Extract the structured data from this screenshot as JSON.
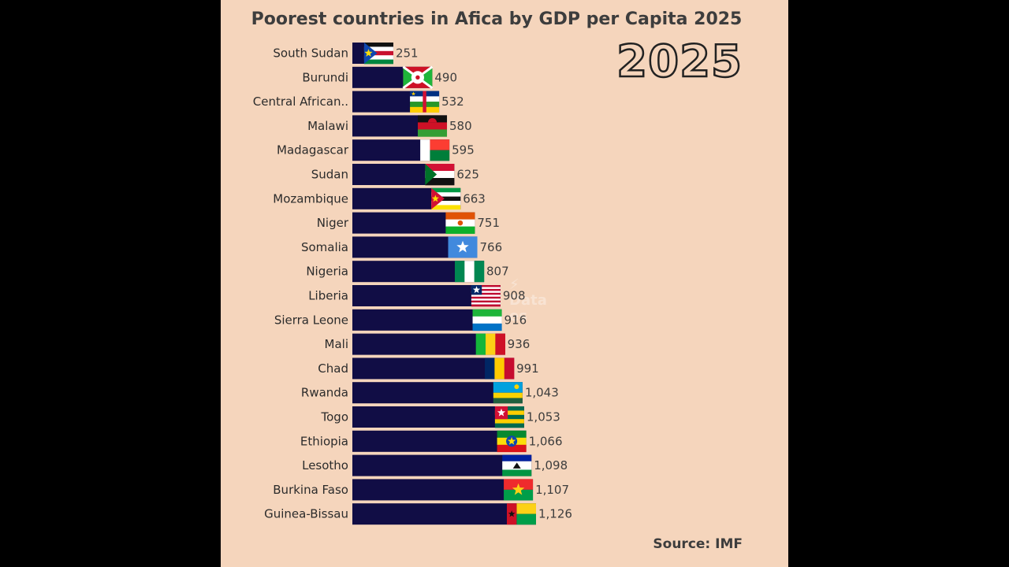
{
  "header": {
    "title": "Poorest countries in Afica by GDP per Capita 2025"
  },
  "year_label": "2025",
  "source": "Source: IMF",
  "colors": {
    "background": "#f5d5bc",
    "bar": "#110d45",
    "page": "#000000"
  },
  "chart_data": {
    "type": "bar",
    "orientation": "horizontal",
    "title": "Poorest countries in Afica by GDP per Capita 2025",
    "categories": [
      "South Sudan",
      "Burundi",
      "Central African..",
      "Malawi",
      "Madagascar",
      "Sudan",
      "Mozambique",
      "Niger",
      "Somalia",
      "Nigeria",
      "Liberia",
      "Sierra Leone",
      "Mali",
      "Chad",
      "Rwanda",
      "Togo",
      "Ethiopia",
      "Lesotho",
      "Burkina Faso",
      "Guinea-Bissau"
    ],
    "values": [
      251,
      490,
      532,
      580,
      595,
      625,
      663,
      751,
      766,
      807,
      908,
      916,
      936,
      991,
      1043,
      1053,
      1066,
      1098,
      1107,
      1126
    ],
    "value_labels": [
      "251",
      "490",
      "532",
      "580",
      "595",
      "625",
      "663",
      "751",
      "766",
      "807",
      "908",
      "916",
      "936",
      "991",
      "1,043",
      "1,053",
      "1,066",
      "1,098",
      "1,107",
      "1,126"
    ],
    "flags": [
      "south-sudan-flag",
      "burundi-flag",
      "car-flag",
      "malawi-flag",
      "madagascar-flag",
      "sudan-flag",
      "mozambique-flag",
      "niger-flag",
      "somalia-flag",
      "nigeria-flag",
      "liberia-flag",
      "sierra-leone-flag",
      "mali-flag",
      "chad-flag",
      "rwanda-flag",
      "togo-flag",
      "ethiopia-flag",
      "lesotho-flag",
      "burkina-faso-flag",
      "guinea-bissau-flag"
    ],
    "xlim": [
      0,
      1126
    ],
    "grid": false,
    "legend": "none"
  }
}
